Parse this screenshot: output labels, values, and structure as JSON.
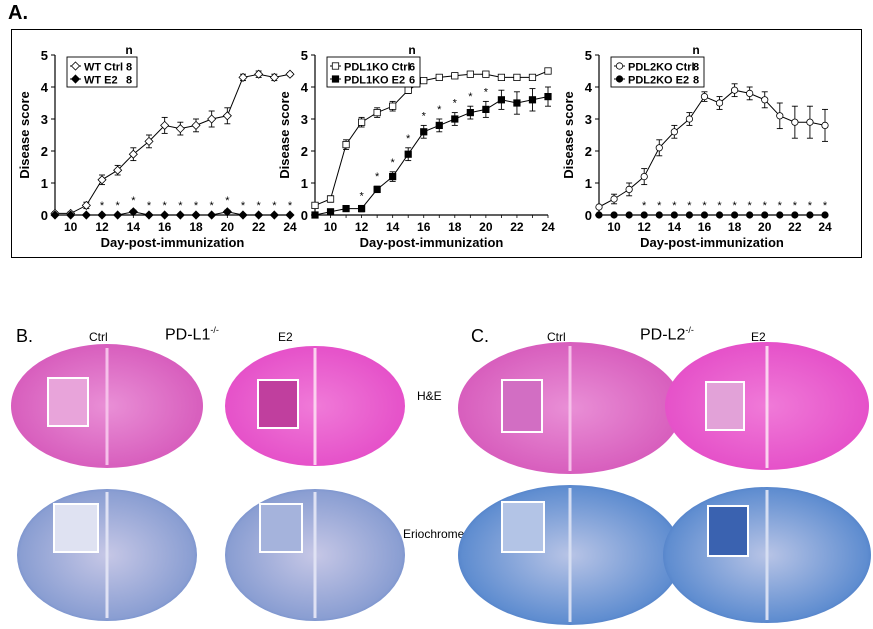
{
  "panel_a_label": "A.",
  "chart_data": [
    {
      "type": "line",
      "xlabel": "Day-post-immunization",
      "ylabel": "Disease score",
      "xlim": [
        9,
        24
      ],
      "ylim": [
        0,
        5
      ],
      "xticks": [
        10,
        12,
        14,
        16,
        18,
        20,
        22,
        24
      ],
      "yticks": [
        0,
        1,
        2,
        3,
        4,
        5
      ],
      "legend_header": "n",
      "legend_position": "top-left",
      "series": [
        {
          "name": "WT Ctrl",
          "n": "8",
          "marker": "open-diamond",
          "x": [
            9,
            10,
            11,
            12,
            13,
            14,
            15,
            16,
            17,
            18,
            19,
            20,
            21,
            22,
            23,
            24
          ],
          "y": [
            0.05,
            0.05,
            0.3,
            1.1,
            1.4,
            1.9,
            2.3,
            2.8,
            2.7,
            2.8,
            3.0,
            3.1,
            4.3,
            4.4,
            4.3,
            4.4
          ],
          "err": [
            0.05,
            0.05,
            0.1,
            0.15,
            0.15,
            0.2,
            0.2,
            0.25,
            0.2,
            0.2,
            0.25,
            0.25,
            0.1,
            0.1,
            0.1,
            0.05
          ]
        },
        {
          "name": "WT E2",
          "n": "8",
          "marker": "filled-diamond",
          "x": [
            9,
            10,
            11,
            12,
            13,
            14,
            15,
            16,
            17,
            18,
            19,
            20,
            21,
            22,
            23,
            24
          ],
          "y": [
            0,
            0,
            0,
            0,
            0,
            0.1,
            0,
            0,
            0,
            0,
            0,
            0.1,
            0,
            0,
            0,
            0
          ],
          "err": [
            0,
            0,
            0,
            0,
            0,
            0.05,
            0,
            0,
            0,
            0,
            0,
            0.05,
            0,
            0,
            0,
            0
          ]
        }
      ],
      "asterisk_days": [
        12,
        13,
        14,
        15,
        16,
        17,
        18,
        19,
        20,
        21,
        22,
        23,
        24
      ],
      "asterisk_at_y": "low"
    },
    {
      "type": "line",
      "xlabel": "Day-post-immunization",
      "ylabel": "Disease score",
      "xlim": [
        9,
        24
      ],
      "ylim": [
        0,
        5
      ],
      "xticks": [
        10,
        12,
        14,
        16,
        18,
        20,
        22,
        24
      ],
      "yticks": [
        0,
        1,
        2,
        3,
        4,
        5
      ],
      "legend_header": "n",
      "legend_position": "top-left",
      "series": [
        {
          "name": "PDL1KO Ctrl",
          "n": "6",
          "marker": "open-square",
          "x": [
            9,
            10,
            11,
            12,
            13,
            14,
            15,
            16,
            17,
            18,
            19,
            20,
            21,
            22,
            23,
            24
          ],
          "y": [
            0.3,
            0.5,
            2.2,
            2.9,
            3.2,
            3.4,
            3.9,
            4.2,
            4.3,
            4.35,
            4.4,
            4.4,
            4.3,
            4.3,
            4.3,
            4.5
          ],
          "err": [
            0.05,
            0.1,
            0.15,
            0.15,
            0.15,
            0.15,
            0.1,
            0.05,
            0.05,
            0.05,
            0.05,
            0.05,
            0.05,
            0.05,
            0.05,
            0.05
          ]
        },
        {
          "name": "PDL1KO E2",
          "n": "6",
          "marker": "filled-square",
          "x": [
            9,
            10,
            11,
            12,
            13,
            14,
            15,
            16,
            17,
            18,
            19,
            20,
            21,
            22,
            23,
            24
          ],
          "y": [
            0,
            0.1,
            0.2,
            0.2,
            0.8,
            1.2,
            1.9,
            2.6,
            2.8,
            3.0,
            3.2,
            3.3,
            3.6,
            3.5,
            3.6,
            3.7
          ],
          "err": [
            0,
            0.05,
            0.05,
            0.1,
            0.1,
            0.15,
            0.2,
            0.2,
            0.2,
            0.2,
            0.2,
            0.25,
            0.3,
            0.35,
            0.35,
            0.3
          ]
        }
      ],
      "asterisk_days": [
        12,
        13,
        14,
        15,
        16,
        17,
        18,
        19,
        20
      ],
      "asterisk_at_y": "above-series"
    },
    {
      "type": "line",
      "xlabel": "Day-post-immunization",
      "ylabel": "Disease score",
      "xlim": [
        9,
        24
      ],
      "ylim": [
        0,
        5
      ],
      "xticks": [
        10,
        12,
        14,
        16,
        18,
        20,
        22,
        24
      ],
      "yticks": [
        0,
        1,
        2,
        3,
        4,
        5
      ],
      "legend_header": "n",
      "legend_position": "top-left",
      "series": [
        {
          "name": "PDL2KO Ctrl",
          "n": "8",
          "marker": "open-circle",
          "x": [
            9,
            10,
            11,
            12,
            13,
            14,
            15,
            16,
            17,
            18,
            19,
            20,
            21,
            22,
            23,
            24
          ],
          "y": [
            0.25,
            0.5,
            0.8,
            1.2,
            2.1,
            2.6,
            3.0,
            3.7,
            3.5,
            3.9,
            3.8,
            3.6,
            3.1,
            2.9,
            2.9,
            2.8
          ],
          "err": [
            0.05,
            0.15,
            0.2,
            0.25,
            0.25,
            0.2,
            0.2,
            0.15,
            0.2,
            0.2,
            0.2,
            0.25,
            0.4,
            0.5,
            0.5,
            0.5
          ]
        },
        {
          "name": "PDL2KO E2",
          "n": "8",
          "marker": "filled-circle",
          "x": [
            9,
            10,
            11,
            12,
            13,
            14,
            15,
            16,
            17,
            18,
            19,
            20,
            21,
            22,
            23,
            24
          ],
          "y": [
            0,
            0,
            0,
            0,
            0,
            0,
            0,
            0,
            0,
            0,
            0,
            0,
            0,
            0,
            0,
            0
          ],
          "err": [
            0,
            0,
            0,
            0,
            0,
            0,
            0,
            0,
            0,
            0,
            0,
            0,
            0,
            0,
            0,
            0
          ]
        }
      ],
      "asterisk_days": [
        12,
        13,
        14,
        15,
        16,
        17,
        18,
        19,
        20,
        21,
        22,
        23,
        24
      ],
      "asterisk_at_y": "low"
    }
  ],
  "histology": {
    "panel_b_label": "B.",
    "panel_c_label": "C.",
    "b_ctrl": "Ctrl",
    "b_title": "PD-L1",
    "b_sup": "-/-",
    "b_e2": "E2",
    "c_ctrl": "Ctrl",
    "c_title": "PD-L2",
    "c_sup": "-/-",
    "c_e2": "E2",
    "stain_he": "H&E",
    "stain_erio": "Eriochrome",
    "colors": {
      "he": "#e565c8",
      "he_light": "#f0a6dc",
      "erio": "#5b8ad0",
      "erio_dark": "#3b69b8",
      "erio_light": "#c8cae8"
    }
  }
}
